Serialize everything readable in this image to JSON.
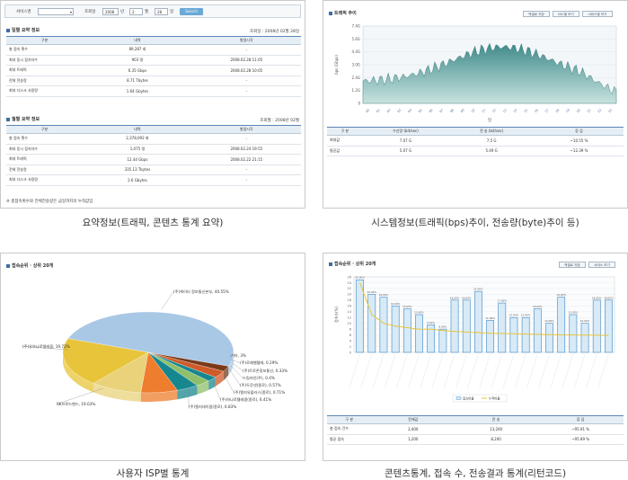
{
  "captions": {
    "p1": "요약정보(트래픽, 콘텐츠 통계 요약)",
    "p2": "시스템정보(트래픽(bps)추이, 전송량(byte)추이 등)",
    "p3": "사용자 ISP별 통계",
    "p4": "콘텐츠통계, 접속 수, 전송결과 통계(리턴코드)"
  },
  "p1": {
    "filter": {
      "service_label": "서비스명",
      "date_label": "조회일",
      "year": "2008",
      "year_unit": "년",
      "month": "2",
      "month_unit": "월",
      "day": "28",
      "day_unit": "일",
      "search": "Search"
    },
    "daily": {
      "title": "일별 요약 정보",
      "date_note": "조회일 : 2008년 02월 28일",
      "headers": [
        "구분",
        "내역",
        "발생시각"
      ],
      "rows": [
        [
          "총 접속 횟수",
          "89,287 회",
          "-"
        ],
        [
          "최대 동시 접속자수",
          "903 명",
          "2008.02.28 11:05"
        ],
        [
          "최대 트래픽",
          "6.35 Gbps",
          "2008.02.28 10:05"
        ],
        [
          "전체 전송량",
          "8.71 Tbytes",
          "-"
        ],
        [
          "최대 디스크 사용량",
          "1.64 Gbytes",
          "-"
        ]
      ]
    },
    "monthly": {
      "title": "월별 요약 정보",
      "date_note": "조회월 : 2008년 02월",
      "headers": [
        "구분",
        "내역",
        "발생시각"
      ],
      "rows": [
        [
          "총 접속 횟수",
          "2,378,092 회",
          "-"
        ],
        [
          "최대 동시 접속자수",
          "1,075 명",
          "2008.02.24 19:55"
        ],
        [
          "최대 트래픽",
          "12.44 Gbps",
          "2008.02.22 21:15"
        ],
        [
          "전체 전송량",
          "335.13 Tbytes",
          "-"
        ],
        [
          "최대 디스크 사용량",
          "2.6 Gbytes",
          "-"
        ]
      ]
    },
    "footnote": "※ 총접속횟수와 전체전송량은 금일까지의 누적값임"
  },
  "p2": {
    "title": "트래픽 추이",
    "buttons": [
      "엑셀로 저장",
      "IDC별 보기",
      "서비스별 보기"
    ],
    "y_ticks": [
      "7.4G",
      "5.6G",
      "4.4G",
      "3.0G",
      "2.4G",
      "1.2G",
      "0"
    ],
    "y_label": "bps (Gbps)",
    "x_label": "일",
    "table_headers": [
      "구 분",
      "수신량\n(bit/sec)",
      "전 송\n(bit/sec)",
      "증 감"
    ],
    "rows": [
      [
        "최대값",
        "7.07 G",
        "7.5 G",
        "~10.55 %"
      ],
      [
        "평균값",
        "5.07 G",
        "5.49 G",
        "~12.39 %"
      ]
    ],
    "colors": {
      "area_top": "#3f8a8a",
      "area_bottom": "#c7e3df"
    }
  },
  "p3": {
    "title": "접속순위 · 상위 20개",
    "colors": {
      "series_top": "#a9c8e6",
      "series_yellow": "#e8c43a",
      "series_teal": "#17878f",
      "series_orange": "#ee7d2d",
      "series_green": "#8fbf6a",
      "series_dark": "#7a3a1a"
    },
    "labels": [
      "(주)케이티 정보통신본부, 40.55%",
      "기타, 3%",
      "(주)로제벨텔레, 0.29%",
      "(주)트로존정보통신, 0.33%",
      "드림라인(주), 0.4%",
      "(주)두루넷(종로), 0.57%",
      "(주)엘지유플러스(종로), 0.71%",
      "(주)하나로텔레콤(종로), 6.41%",
      "(주)엘지데이콤(종로), 6.83%",
      "(주)유하나로텔레콤, 19.72%",
      "SK브로드밴드, 19.03%"
    ]
  },
  "p4": {
    "title": "접속순위 · 상위 20개",
    "buttons": [
      "엑셀로 저장",
      "서비스 보기"
    ],
    "y_label": "접속수(%)",
    "values": [
      25,
      20,
      19,
      16,
      15,
      13,
      9.5,
      8,
      18,
      18,
      21,
      11,
      17,
      12,
      12,
      15,
      10,
      19,
      13,
      10,
      18,
      18
    ],
    "line": [
      24,
      13,
      10,
      9,
      8.5,
      8,
      8,
      7.5,
      7.2,
      7,
      6.8,
      6.6,
      6.5,
      6.4,
      6.3,
      6.2,
      6.1,
      6,
      6,
      5.9,
      5.9,
      5.8
    ],
    "ylim": [
      0,
      26
    ],
    "legend": [
      "접속비율",
      "누적비율"
    ],
    "table_headers": [
      "구 분",
      "전체값",
      "전 송",
      "증 감"
    ],
    "rows": [
      [
        "총 접속 건수",
        "3,400",
        "13,200",
        "~95.91 %"
      ],
      [
        "평균 접속",
        "1,200",
        "8,200",
        "~95.89 %"
      ]
    ],
    "colors": {
      "bar": "#d7eaf6",
      "bar_edge": "#3f86c5",
      "line": "#e8c43a"
    }
  }
}
